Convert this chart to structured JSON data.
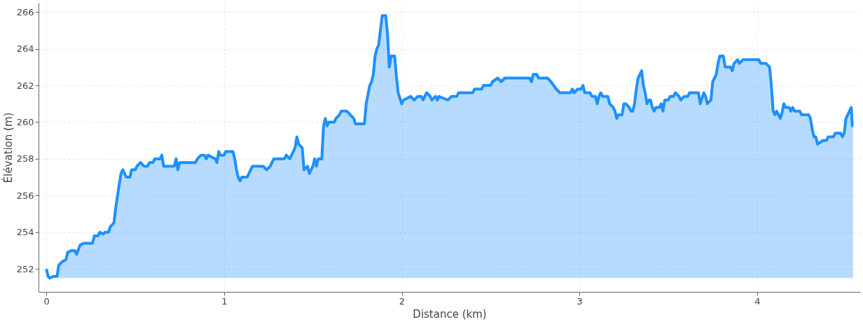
{
  "chart_data": {
    "type": "area",
    "xlabel": "Distance (km)",
    "ylabel": "Élévation (m)",
    "xlim": [
      -0.044,
      4.58
    ],
    "ylim": [
      250.75,
      266.5
    ],
    "xticks": [
      0,
      1,
      2,
      3,
      4
    ],
    "yticks": [
      252,
      254,
      256,
      258,
      260,
      262,
      264,
      266
    ],
    "grid": true,
    "marker": "none",
    "line_style": "solid",
    "x": [
      0.0,
      0.01,
      0.02,
      0.04,
      0.06,
      0.07,
      0.09,
      0.11,
      0.12,
      0.14,
      0.16,
      0.17,
      0.19,
      0.21,
      0.26,
      0.27,
      0.29,
      0.3,
      0.32,
      0.33,
      0.35,
      0.36,
      0.38,
      0.39,
      0.41,
      0.42,
      0.43,
      0.45,
      0.47,
      0.48,
      0.5,
      0.51,
      0.53,
      0.55,
      0.57,
      0.58,
      0.6,
      0.61,
      0.64,
      0.65,
      0.66,
      0.72,
      0.73,
      0.74,
      0.75,
      0.84,
      0.85,
      0.87,
      0.89,
      0.9,
      0.91,
      0.95,
      0.96,
      0.97,
      0.98,
      1.0,
      1.01,
      1.05,
      1.06,
      1.07,
      1.08,
      1.09,
      1.1,
      1.13,
      1.15,
      1.16,
      1.22,
      1.24,
      1.26,
      1.28,
      1.34,
      1.35,
      1.37,
      1.38,
      1.4,
      1.41,
      1.42,
      1.44,
      1.45,
      1.47,
      1.48,
      1.5,
      1.51,
      1.52,
      1.53,
      1.55,
      1.56,
      1.57,
      1.58,
      1.59,
      1.62,
      1.63,
      1.65,
      1.66,
      1.69,
      1.71,
      1.73,
      1.74,
      1.79,
      1.8,
      1.82,
      1.83,
      1.84,
      1.85,
      1.86,
      1.87,
      1.88,
      1.89,
      1.91,
      1.92,
      1.93,
      1.94,
      1.96,
      1.97,
      1.98,
      1.99,
      2.0,
      2.01,
      2.05,
      2.07,
      2.09,
      2.11,
      2.12,
      2.14,
      2.16,
      2.17,
      2.19,
      2.2,
      2.21,
      2.26,
      2.28,
      2.31,
      2.32,
      2.4,
      2.41,
      2.45,
      2.46,
      2.5,
      2.51,
      2.54,
      2.56,
      2.58,
      2.72,
      2.73,
      2.74,
      2.76,
      2.77,
      2.82,
      2.84,
      2.87,
      2.89,
      2.95,
      2.96,
      2.97,
      2.99,
      3.01,
      3.02,
      3.03,
      3.06,
      3.07,
      3.09,
      3.1,
      3.11,
      3.12,
      3.13,
      3.16,
      3.17,
      3.19,
      3.2,
      3.21,
      3.22,
      3.24,
      3.25,
      3.26,
      3.28,
      3.29,
      3.3,
      3.31,
      3.32,
      3.33,
      3.35,
      3.36,
      3.37,
      3.38,
      3.39,
      3.4,
      3.41,
      3.42,
      3.43,
      3.45,
      3.46,
      3.47,
      3.48,
      3.5,
      3.51,
      3.53,
      3.54,
      3.56,
      3.57,
      3.59,
      3.61,
      3.62,
      3.67,
      3.68,
      3.7,
      3.71,
      3.72,
      3.74,
      3.75,
      3.77,
      3.78,
      3.79,
      3.81,
      3.82,
      3.85,
      3.86,
      3.87,
      3.89,
      3.9,
      3.92,
      4.01,
      4.02,
      4.05,
      4.07,
      4.08,
      4.09,
      4.1,
      4.11,
      4.12,
      4.13,
      4.14,
      4.15,
      4.16,
      4.18,
      4.19,
      4.2,
      4.21,
      4.24,
      4.25,
      4.29,
      4.3,
      4.31,
      4.32,
      4.33,
      4.34,
      4.37,
      4.39,
      4.4,
      4.43,
      4.44,
      4.47,
      4.48,
      4.49,
      4.5,
      4.51,
      4.52,
      4.53,
      4.535,
      4.54
    ],
    "series": [
      {
        "color": "#1e90ff",
        "values": [
          252.0,
          251.6,
          251.5,
          251.6,
          251.6,
          252.2,
          252.4,
          252.5,
          252.9,
          253.0,
          253.0,
          252.8,
          253.3,
          253.4,
          253.4,
          253.8,
          253.8,
          254.0,
          253.9,
          254.0,
          254.0,
          254.3,
          254.5,
          255.3,
          256.6,
          257.2,
          257.4,
          257.0,
          257.0,
          257.4,
          257.4,
          257.6,
          257.8,
          257.6,
          257.6,
          257.8,
          257.8,
          258.0,
          258.0,
          258.2,
          257.6,
          257.6,
          258.0,
          257.4,
          257.8,
          257.8,
          258.0,
          258.2,
          258.2,
          258.0,
          258.2,
          258.0,
          257.8,
          258.4,
          258.2,
          258.2,
          258.4,
          258.4,
          258.0,
          257.4,
          257.0,
          256.8,
          257.0,
          257.0,
          257.4,
          257.6,
          257.6,
          257.4,
          257.6,
          258.0,
          258.0,
          258.2,
          258.0,
          258.2,
          258.6,
          259.2,
          258.8,
          258.6,
          257.4,
          257.6,
          257.2,
          257.6,
          258.0,
          257.6,
          258.0,
          258.0,
          259.8,
          260.2,
          259.8,
          260.0,
          260.0,
          260.2,
          260.4,
          260.6,
          260.6,
          260.4,
          260.2,
          259.9,
          259.9,
          261.0,
          262.0,
          262.2,
          262.6,
          263.6,
          264.0,
          264.2,
          265.0,
          265.8,
          265.8,
          264.8,
          263.0,
          263.6,
          263.6,
          262.5,
          261.6,
          261.3,
          261.0,
          261.2,
          261.4,
          261.2,
          261.4,
          261.4,
          261.2,
          261.6,
          261.4,
          261.2,
          261.4,
          261.2,
          261.4,
          261.2,
          261.4,
          261.4,
          261.6,
          261.6,
          261.8,
          261.8,
          262.0,
          262.0,
          262.2,
          262.4,
          262.2,
          262.4,
          262.4,
          262.2,
          262.6,
          262.6,
          262.4,
          262.4,
          262.2,
          261.8,
          261.6,
          261.6,
          261.8,
          261.6,
          261.8,
          261.8,
          262.0,
          261.6,
          261.6,
          261.4,
          261.4,
          261.0,
          261.4,
          261.6,
          261.4,
          261.4,
          261.0,
          260.8,
          260.6,
          260.2,
          260.4,
          260.4,
          261.0,
          261.0,
          260.8,
          260.6,
          260.6,
          261.0,
          261.8,
          262.4,
          262.8,
          262.0,
          261.6,
          261.0,
          261.2,
          261.2,
          260.8,
          260.6,
          260.8,
          260.8,
          261.0,
          260.6,
          261.2,
          261.2,
          261.4,
          261.4,
          261.6,
          261.4,
          261.2,
          261.4,
          261.4,
          261.6,
          261.6,
          261.0,
          261.6,
          261.4,
          261.0,
          261.2,
          262.2,
          262.6,
          263.2,
          263.6,
          263.6,
          263.0,
          263.0,
          262.8,
          263.2,
          263.4,
          263.2,
          263.4,
          263.4,
          263.2,
          263.2,
          263.0,
          262.0,
          260.6,
          260.4,
          260.6,
          260.4,
          260.2,
          260.5,
          261.0,
          260.8,
          260.8,
          260.6,
          260.8,
          260.6,
          260.6,
          260.4,
          260.4,
          260.2,
          259.6,
          259.2,
          259.2,
          258.8,
          259.0,
          259.0,
          259.2,
          259.2,
          259.4,
          259.4,
          259.2,
          259.4,
          260.2,
          260.4,
          260.6,
          260.8,
          259.8,
          259.8
        ]
      }
    ]
  }
}
